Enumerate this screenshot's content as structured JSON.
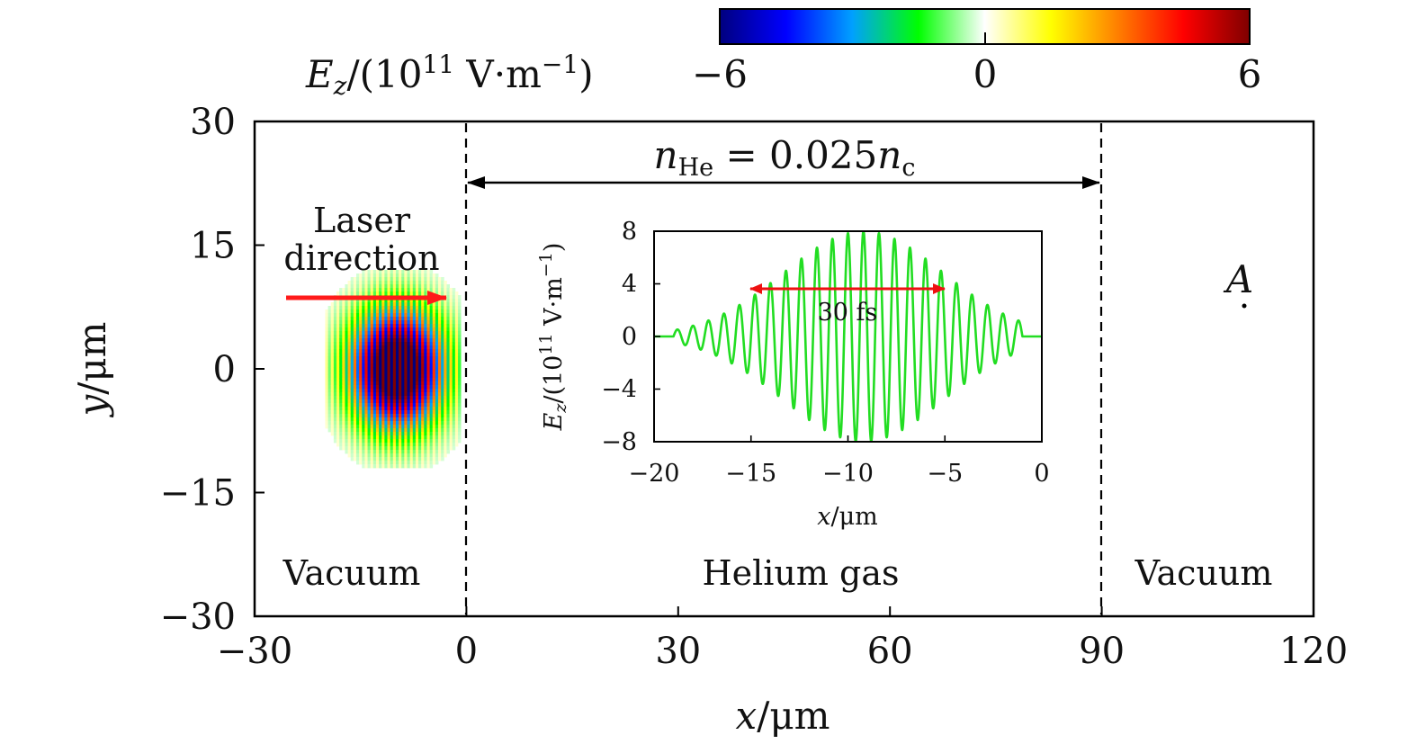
{
  "chart_data": [
    {
      "type": "heatmap",
      "xlabel": "x/μm",
      "ylabel": "y/μm",
      "xlim": [
        -30,
        120
      ],
      "ylim": [
        -30,
        30
      ],
      "xticks": [
        "−30",
        "0",
        "30",
        "60",
        "90",
        "120"
      ],
      "yticks": [
        "30",
        "15",
        "0",
        "−15",
        "−30"
      ],
      "xtick_values": [
        -30,
        0,
        30,
        60,
        90,
        120
      ],
      "ytick_values": [
        30,
        15,
        0,
        -15,
        -30
      ],
      "colorbar": {
        "label": "E_z/(10^11 V·m^−1)",
        "min": -6,
        "max": 6,
        "ticks": [
          "−6",
          "0",
          "6"
        ],
        "tick_values": [
          -6,
          0,
          6
        ],
        "colors": [
          "#00007f",
          "#0000ff",
          "#00a0ff",
          "#00ff00",
          "#ffffff",
          "#ffff00",
          "#ff8000",
          "#ff0000",
          "#7f0000"
        ]
      },
      "laser_pulse": {
        "x_range": [
          -20,
          -1
        ],
        "y_range": [
          -12,
          12
        ],
        "peak_x": -10
      },
      "boundaries_x": [
        0,
        90
      ],
      "density_annotation": {
        "text": "n_He = 0.025n_c",
        "x_range": [
          0,
          90
        ]
      },
      "laser_label": [
        "Laser",
        "direction"
      ],
      "regions": [
        {
          "label": "Vacuum",
          "x": -16
        },
        {
          "label": "Helium gas",
          "x": 45
        },
        {
          "label": "Vacuum",
          "x": 105
        }
      ],
      "point_A": {
        "label": "A",
        "x": 110,
        "y": 5
      }
    },
    {
      "type": "line",
      "xlabel": "x/μm",
      "ylabel": "E_z/(10^11 V·m^−1)",
      "xlim": [
        -20,
        0
      ],
      "ylim": [
        -8,
        8
      ],
      "xticks": [
        "−20",
        "−15",
        "−10",
        "−5",
        "0"
      ],
      "yticks": [
        "8",
        "4",
        "0",
        "−4",
        "−8"
      ],
      "xtick_values": [
        -20,
        -15,
        -10,
        -5,
        0
      ],
      "ytick_values": [
        8,
        4,
        0,
        -4,
        -8
      ],
      "series_color": "#22dd22",
      "series": [
        {
          "amplitude": 8,
          "center_x": -9.2,
          "wavelength": 0.8,
          "envelope_fwhm": 9.7,
          "x_range": [
            -19,
            -1
          ]
        }
      ],
      "fwhm_annotation": {
        "text": "30 fs",
        "x_range": [
          -15,
          -5
        ],
        "y": 3.6
      }
    }
  ]
}
